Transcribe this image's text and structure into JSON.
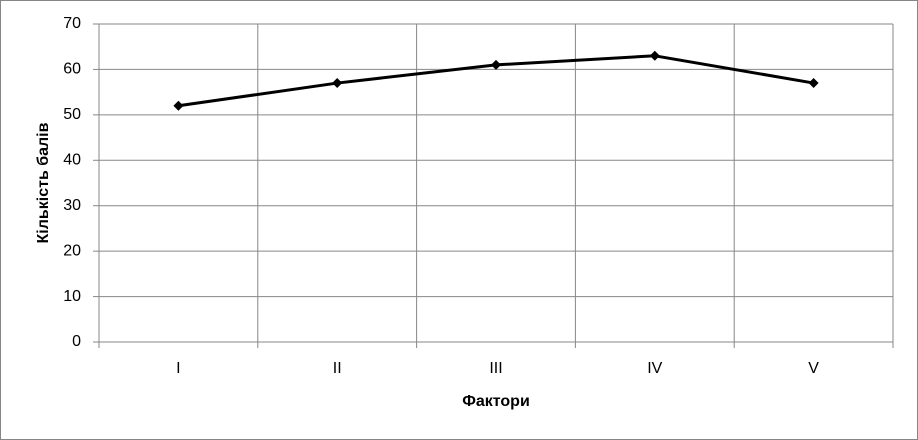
{
  "chart_data": {
    "type": "line",
    "x_label": "Фактори",
    "y_label": "Кількість балів",
    "categories": [
      "I",
      "II",
      "III",
      "IV",
      "V"
    ],
    "values": [
      52,
      57,
      61,
      63,
      57
    ],
    "color": "#000000",
    "ylim": [
      0,
      70
    ],
    "yticks": [
      0,
      10,
      20,
      30,
      40,
      50,
      60,
      70
    ],
    "grid": true
  }
}
